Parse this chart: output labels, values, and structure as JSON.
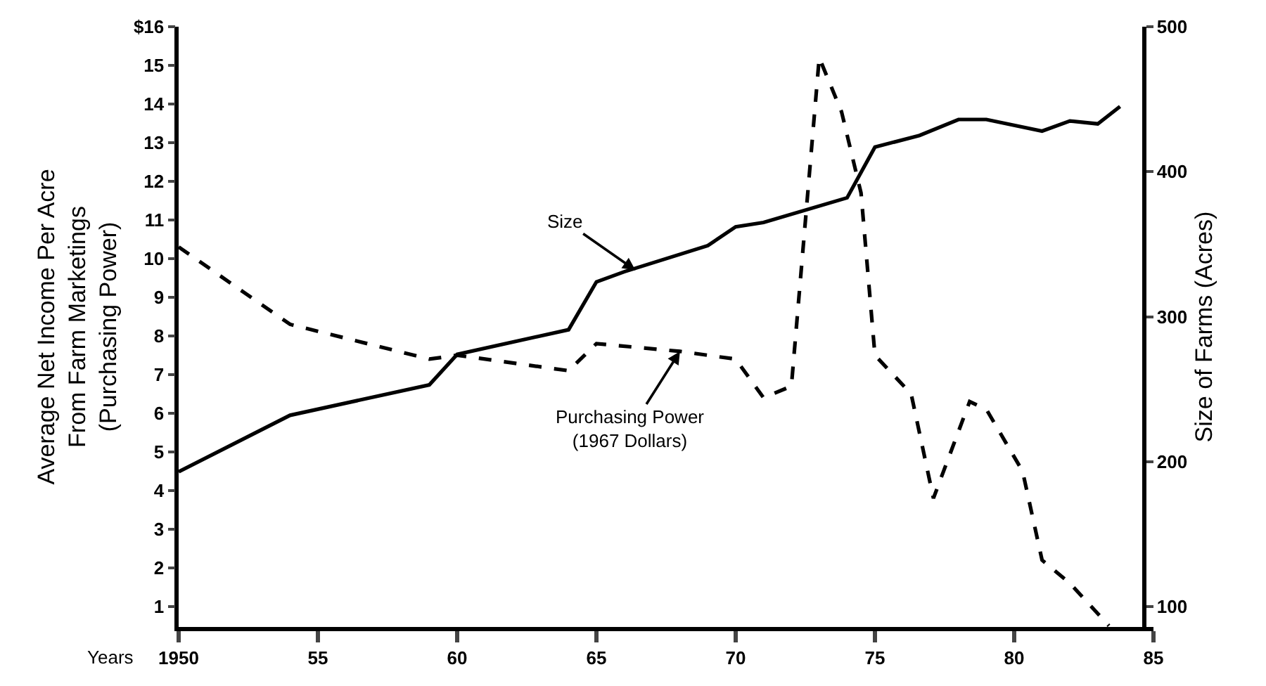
{
  "chart_data": {
    "type": "line",
    "xlabel": "Years",
    "ylabel": "Average Net Income Per Acre\nFrom Farm Marketings\n(Purchasing Power)",
    "y2label": "Size of Farms (Acres)",
    "xlim": [
      1950,
      1985
    ],
    "xticks": [
      {
        "value": 1950,
        "label": "1950"
      },
      {
        "value": 1955,
        "label": "55"
      },
      {
        "value": 1960,
        "label": "60"
      },
      {
        "value": 1965,
        "label": "65"
      },
      {
        "value": 1970,
        "label": "70"
      },
      {
        "value": 1975,
        "label": "75"
      },
      {
        "value": 1980,
        "label": "80"
      },
      {
        "value": 1985,
        "label": "85"
      }
    ],
    "ylim": [
      0.47,
      16
    ],
    "yticks": [
      1,
      2,
      3,
      4,
      5,
      6,
      7,
      8,
      9,
      10,
      11,
      12,
      13,
      14,
      15,
      {
        "value": 16,
        "label": "$16"
      }
    ],
    "y2lim": [
      86,
      500
    ],
    "y2ticks": [
      100,
      200,
      300,
      400,
      500
    ],
    "grid": false,
    "marker": "none",
    "series": [
      {
        "color": "#000000",
        "line_style": "dashed",
        "x": [
          1950,
          1954,
          1959,
          1960,
          1964,
          1965,
          1968,
          1970,
          1971,
          1972,
          1973,
          1973.8,
          1974.5,
          1975,
          1976.3,
          1977.1,
          1978.4,
          1979,
          1980.3,
          1981,
          1982,
          1983.4
        ],
        "values": [
          10.3,
          8.3,
          7.4,
          7.5,
          7.1,
          7.8,
          7.6,
          7.4,
          6.4,
          6.7,
          15.2,
          13.8,
          11.7,
          7.5,
          6.5,
          3.8,
          6.3,
          6.1,
          4.5,
          2.2,
          1.6,
          0.5
        ]
      },
      {
        "color": "#000000",
        "line_style": "solid",
        "axis": "y2",
        "x": [
          1950,
          1954,
          1959,
          1960,
          1964,
          1965,
          1966,
          1969,
          1970,
          1971,
          1974,
          1975,
          1976.6,
          1978,
          1979,
          1981,
          1982,
          1983,
          1983.8
        ],
        "values": [
          193,
          232,
          253,
          274,
          291,
          324,
          331,
          349,
          362,
          365,
          382,
          417,
          425,
          436,
          436,
          428,
          435,
          433,
          445
        ]
      }
    ],
    "annotations": [
      {
        "text": "Size",
        "x": 1966.4,
        "y": 9.7
      },
      {
        "text": "Purchasing Power\n(1967 Dollars)",
        "x": 1968,
        "y": 7.6
      }
    ]
  }
}
